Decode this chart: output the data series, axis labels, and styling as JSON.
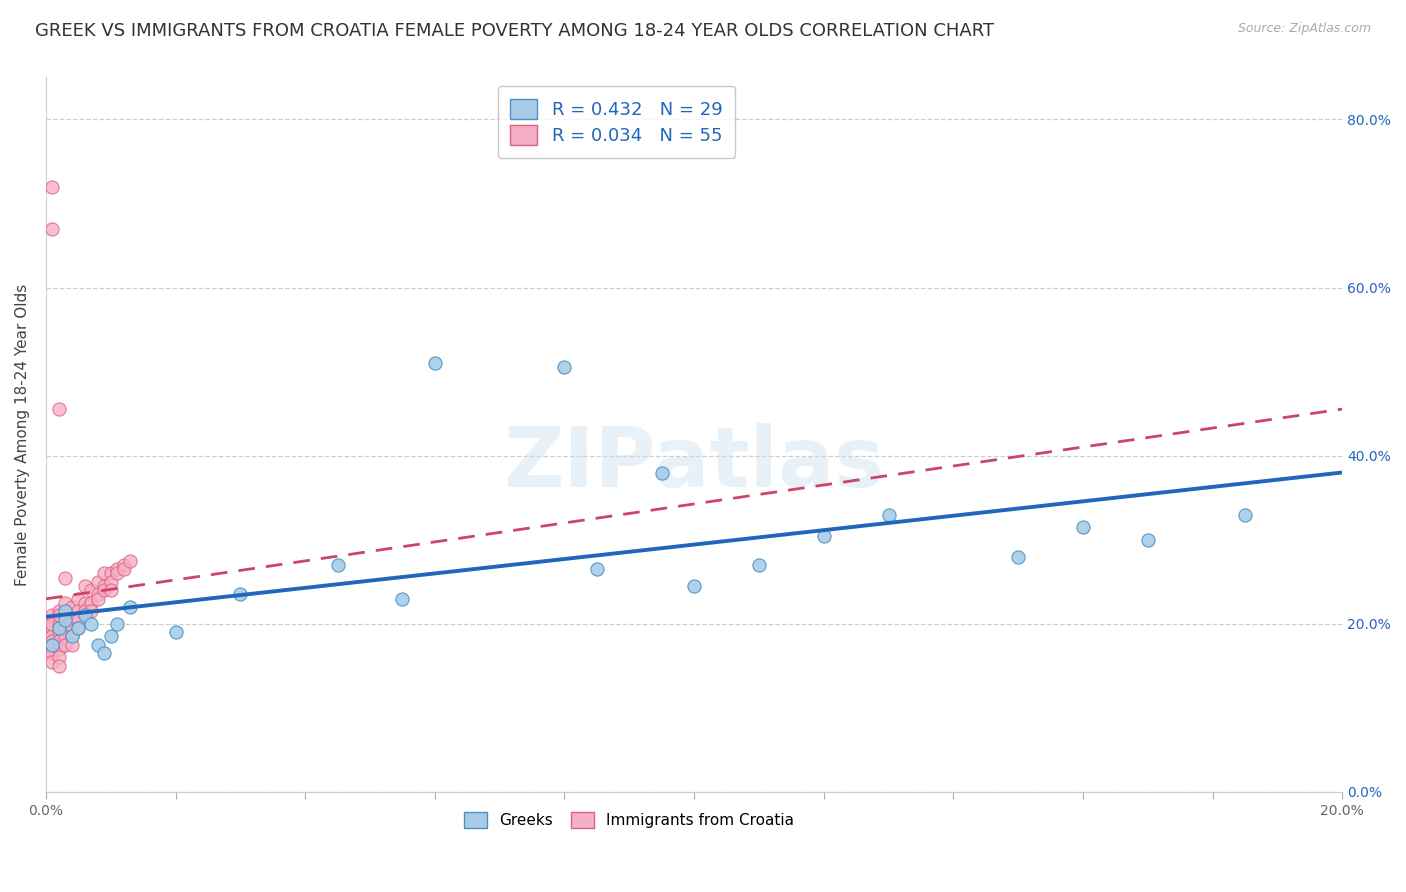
{
  "title": "GREEK VS IMMIGRANTS FROM CROATIA FEMALE POVERTY AMONG 18-24 YEAR OLDS CORRELATION CHART",
  "source": "Source: ZipAtlas.com",
  "ylabel": "Female Poverty Among 18-24 Year Olds",
  "xlim": [
    0.0,
    0.2
  ],
  "ylim": [
    0.0,
    0.85
  ],
  "greek_color": "#a8cce8",
  "greek_edge_color": "#4a90c4",
  "croatia_color": "#f5b0c5",
  "croatia_edge_color": "#e06080",
  "greek_R": 0.432,
  "greek_N": 29,
  "croatia_R": 0.034,
  "croatia_N": 55,
  "greek_line_color": "#2266bb",
  "croatia_line_color": "#cc4466",
  "marker_size": 90,
  "background_color": "#ffffff",
  "grid_color": "#cccccc",
  "title_fontsize": 13,
  "axis_label_fontsize": 11,
  "tick_fontsize": 10,
  "greeks_x": [
    0.001,
    0.002,
    0.003,
    0.003,
    0.004,
    0.005,
    0.006,
    0.007,
    0.008,
    0.009,
    0.01,
    0.011,
    0.013,
    0.02,
    0.03,
    0.045,
    0.055,
    0.06,
    0.08,
    0.085,
    0.095,
    0.1,
    0.11,
    0.12,
    0.13,
    0.15,
    0.16,
    0.17,
    0.185
  ],
  "greeks_y": [
    0.175,
    0.195,
    0.215,
    0.205,
    0.185,
    0.195,
    0.21,
    0.2,
    0.175,
    0.165,
    0.185,
    0.2,
    0.22,
    0.19,
    0.235,
    0.27,
    0.23,
    0.51,
    0.505,
    0.265,
    0.38,
    0.245,
    0.27,
    0.305,
    0.33,
    0.28,
    0.315,
    0.3,
    0.33
  ],
  "croatia_x": [
    0.001,
    0.001,
    0.001,
    0.001,
    0.001,
    0.001,
    0.001,
    0.001,
    0.001,
    0.001,
    0.002,
    0.002,
    0.002,
    0.002,
    0.002,
    0.002,
    0.002,
    0.002,
    0.003,
    0.003,
    0.003,
    0.003,
    0.003,
    0.003,
    0.004,
    0.004,
    0.004,
    0.004,
    0.004,
    0.005,
    0.005,
    0.005,
    0.005,
    0.006,
    0.006,
    0.006,
    0.007,
    0.007,
    0.007,
    0.008,
    0.008,
    0.008,
    0.009,
    0.009,
    0.009,
    0.01,
    0.01,
    0.01,
    0.011,
    0.011,
    0.012,
    0.012,
    0.013,
    0.001,
    0.002
  ],
  "croatia_y": [
    0.21,
    0.195,
    0.185,
    0.2,
    0.18,
    0.17,
    0.175,
    0.165,
    0.155,
    0.72,
    0.215,
    0.2,
    0.19,
    0.21,
    0.18,
    0.17,
    0.16,
    0.15,
    0.225,
    0.21,
    0.195,
    0.185,
    0.175,
    0.255,
    0.22,
    0.205,
    0.195,
    0.185,
    0.175,
    0.23,
    0.215,
    0.205,
    0.195,
    0.245,
    0.225,
    0.215,
    0.24,
    0.225,
    0.215,
    0.25,
    0.235,
    0.23,
    0.26,
    0.245,
    0.24,
    0.26,
    0.25,
    0.24,
    0.265,
    0.26,
    0.27,
    0.265,
    0.275,
    0.67,
    0.455
  ],
  "ytick_positions": [
    0.0,
    0.2,
    0.4,
    0.6,
    0.8
  ],
  "ytick_labels": [
    "0.0%",
    "20.0%",
    "40.0%",
    "60.0%",
    "80.0%"
  ],
  "xtick_positions": [
    0.0,
    0.02,
    0.04,
    0.06,
    0.08,
    0.1,
    0.12,
    0.14,
    0.16,
    0.18,
    0.2
  ],
  "xtick_labels": [
    "0.0%",
    "",
    "",
    "",
    "",
    "",
    "",
    "",
    "",
    "",
    "20.0%"
  ]
}
